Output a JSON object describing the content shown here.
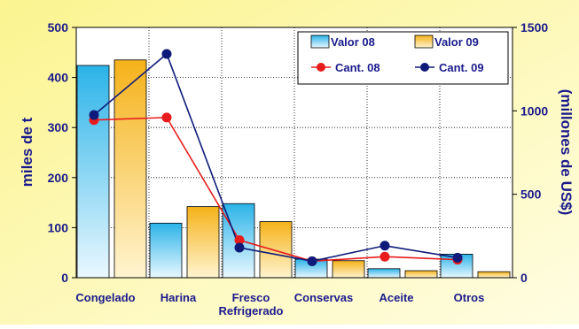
{
  "chart_data": {
    "type": "bar",
    "categories": [
      "Congelado",
      "Harina",
      "Fresco\nRefrigerado",
      "Conservas",
      "Aceite",
      "Otros"
    ],
    "ylabel_left": "miles de t",
    "ylabel_right": "(millones de US$)",
    "ylim_left": [
      0,
      500
    ],
    "ylim_right": [
      0,
      1500
    ],
    "yticks_left": [
      "0",
      "100",
      "200",
      "300",
      "400",
      "500"
    ],
    "yticks_right": [
      "0",
      "500",
      "1000",
      "1500"
    ],
    "grid": true,
    "legend_position": "top-right",
    "bar_series": [
      {
        "name": "Valor 08",
        "axis": "right",
        "values": [
          1272,
          327,
          444,
          111,
          54,
          141
        ],
        "color": "#2bb3e8"
      },
      {
        "name": "Valor 09",
        "axis": "right",
        "values": [
          1305,
          426,
          336,
          102,
          42,
          36
        ],
        "color": "#f5b21a"
      }
    ],
    "line_series": [
      {
        "name": "Cant. 08",
        "axis": "left",
        "values": [
          315,
          320,
          75,
          33,
          42,
          36
        ],
        "color": "#e81c1c"
      },
      {
        "name": "Cant. 09",
        "axis": "left",
        "values": [
          325,
          447,
          60,
          33,
          64,
          40
        ],
        "color": "#0e1a7a"
      }
    ]
  }
}
